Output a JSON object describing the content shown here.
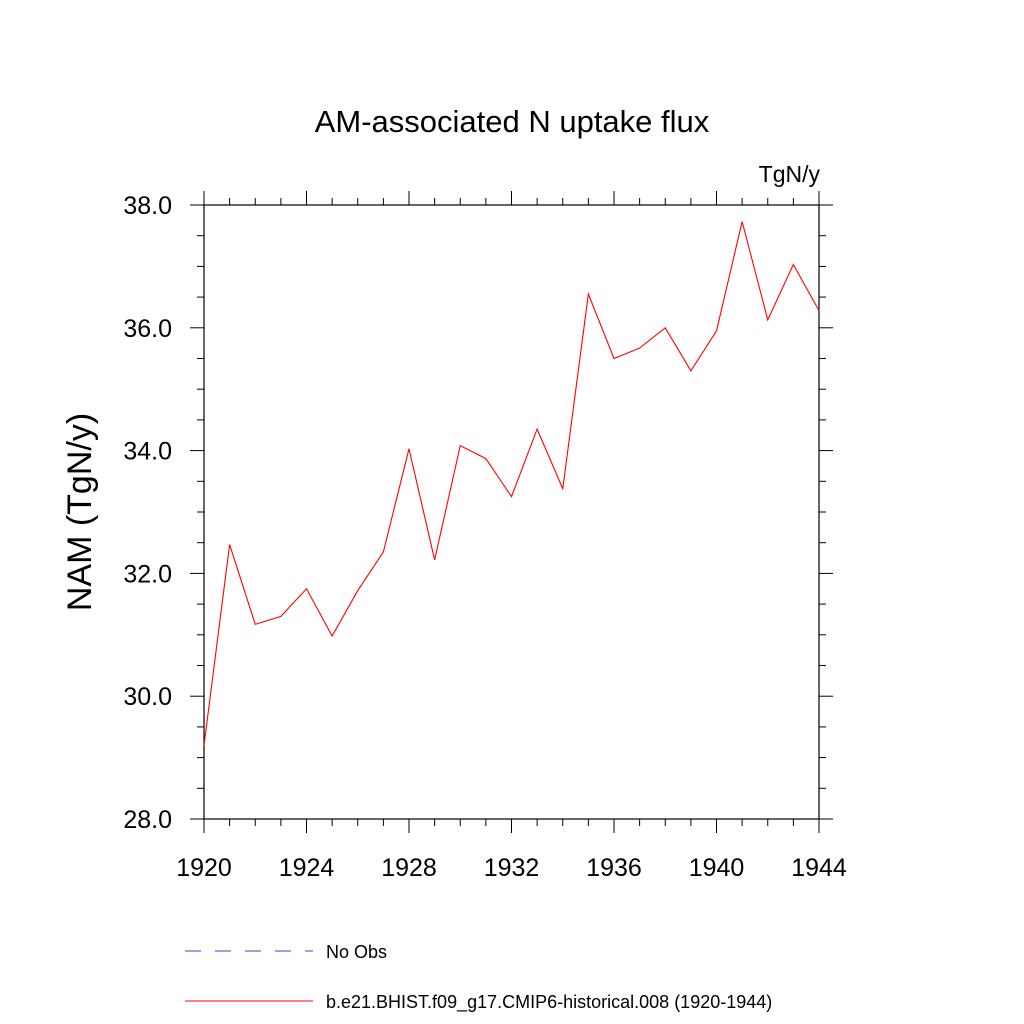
{
  "chart_data": {
    "type": "line",
    "title": "AM-associated N uptake flux",
    "units_label": "TgN/y",
    "ylabel": "NAM  (TgN/y)",
    "xlabel": "",
    "xlim": [
      1920,
      1944
    ],
    "ylim": [
      28.0,
      38.0
    ],
    "x_ticks": [
      1920,
      1924,
      1928,
      1932,
      1936,
      1940,
      1944
    ],
    "x_tick_labels": [
      "1920",
      "1924",
      "1928",
      "1932",
      "1936",
      "1940",
      "1944"
    ],
    "y_ticks": [
      28.0,
      30.0,
      32.0,
      34.0,
      36.0,
      38.0
    ],
    "y_tick_labels": [
      "28.0",
      "30.0",
      "32.0",
      "34.0",
      "36.0",
      "38.0"
    ],
    "grid": false,
    "legend_position": "bottom",
    "x": [
      1920,
      1921,
      1922,
      1923,
      1924,
      1925,
      1926,
      1927,
      1928,
      1929,
      1930,
      1931,
      1932,
      1933,
      1934,
      1935,
      1936,
      1937,
      1938,
      1939,
      1940,
      1941,
      1942,
      1943,
      1944
    ],
    "series": [
      {
        "name": "b.e21.BHIST.f09_g17.CMIP6-historical.008 (1920-1944)",
        "color": "#ff0000",
        "dash": "solid",
        "values": [
          29.2,
          32.47,
          31.17,
          31.3,
          31.75,
          30.98,
          31.72,
          32.35,
          34.03,
          32.22,
          34.08,
          33.87,
          33.25,
          34.35,
          33.38,
          36.55,
          35.5,
          35.67,
          36.0,
          35.3,
          35.95,
          37.73,
          36.13,
          37.03,
          36.28
        ]
      }
    ],
    "legend": [
      {
        "label": "No Obs",
        "color": "#4040c0",
        "dash": "dashed"
      },
      {
        "label": "b.e21.BHIST.f09_g17.CMIP6-historical.008 (1920-1944)",
        "color": "#ff0000",
        "dash": "solid"
      }
    ]
  }
}
